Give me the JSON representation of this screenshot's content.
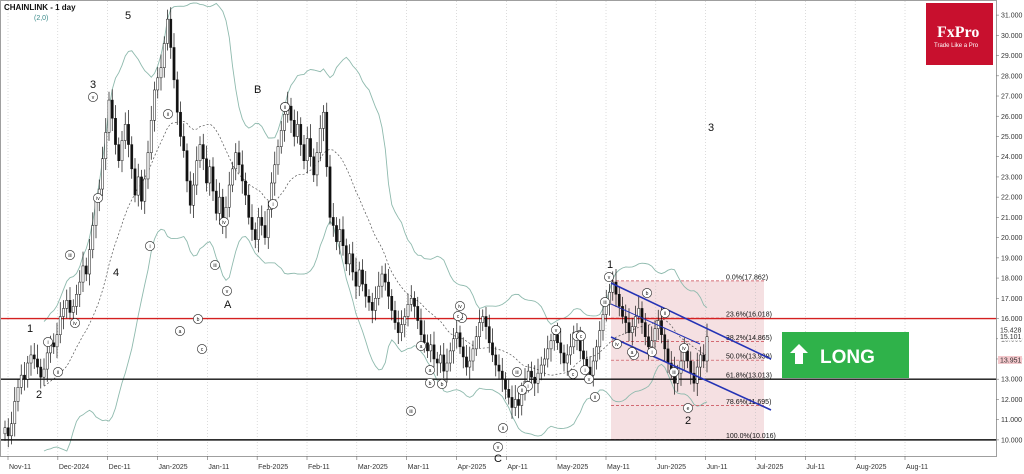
{
  "chart_data": {
    "type": "candlestick",
    "title": "CHAINLINK - 1 day",
    "subtitle": "(2,0)",
    "y_range": [
      9.5,
      31.5
    ],
    "y_ticks": [
      "31.000",
      "30.000",
      "29.000",
      "28.000",
      "27.000",
      "26.000",
      "25.000",
      "24.000",
      "23.000",
      "22.000",
      "21.000",
      "20.000",
      "19.000",
      "18.000",
      "17.000",
      "16.000",
      "15.000",
      "14.000",
      "13.000",
      "12.000",
      "11.000",
      "10.000"
    ],
    "x_ticks": [
      "Nov-11",
      "Dec-2024",
      "Dec-11",
      "Jan-2025",
      "Jan-11",
      "Feb-2025",
      "Feb-11",
      "Mar-2025",
      "Mar-11",
      "Apr-2025",
      "Apr-11",
      "May-2025",
      "May-11",
      "Jun-2025",
      "Jun-11",
      "Jul-2025",
      "Jul-11",
      "Aug-2025",
      "Aug-11"
    ],
    "last_price_label": "15.428",
    "price_labels": [
      "15.101",
      "13.951"
    ],
    "horizontal_levels": [
      {
        "value": 16.0,
        "color": "#d42020"
      },
      {
        "value": 13.0,
        "color": "#111111"
      },
      {
        "value": 10.0,
        "color": "#111111"
      }
    ],
    "fibonacci": [
      {
        "label": "0.0%(17.862)",
        "value": 17.862
      },
      {
        "label": "23.6%(16.018)",
        "value": 16.018
      },
      {
        "label": "38.2%(14.865)",
        "value": 14.865
      },
      {
        "label": "50.0%(13.939)",
        "value": 13.939
      },
      {
        "label": "61.8%(13.013)",
        "value": 13.013
      },
      {
        "label": "78.6%(11.695)",
        "value": 11.695
      },
      {
        "label": "100.0%(10.016)",
        "value": 10.016
      }
    ],
    "candles_close": [
      10.6,
      10.2,
      10.8,
      11.9,
      12.6,
      13.2,
      13.0,
      13.8,
      14.2,
      14.0,
      13.6,
      13.1,
      13.5,
      14.3,
      14.8,
      14.6,
      15.2,
      16.1,
      16.5,
      16.9,
      16.3,
      16.6,
      17.2,
      17.8,
      18.6,
      18.2,
      19.4,
      20.6,
      21.8,
      22.4,
      23.9,
      25.2,
      26.8,
      25.9,
      24.6,
      23.8,
      24.8,
      25.6,
      24.6,
      23.4,
      22.1,
      23.0,
      21.8,
      22.9,
      24.2,
      25.8,
      27.3,
      27.9,
      28.4,
      29.6,
      30.8,
      29.4,
      27.8,
      26.2,
      25.0,
      24.3,
      22.8,
      21.6,
      22.6,
      23.8,
      24.6,
      23.9,
      22.7,
      23.5,
      22.3,
      21.2,
      22.0,
      20.6,
      21.5,
      22.6,
      23.4,
      24.2,
      23.6,
      22.8,
      22.1,
      21.0,
      20.4,
      19.9,
      21.0,
      20.6,
      20.0,
      21.4,
      22.7,
      23.6,
      24.5,
      25.3,
      26.1,
      26.5,
      25.8,
      25.0,
      25.6,
      24.6,
      23.8,
      24.9,
      24.0,
      23.1,
      24.2,
      25.4,
      26.2,
      23.5,
      21.0,
      20.6,
      19.8,
      20.4,
      19.6,
      18.7,
      19.2,
      18.3,
      17.6,
      18.4,
      17.7,
      17.1,
      16.8,
      16.4,
      17.0,
      17.6,
      18.2,
      17.8,
      17.1,
      16.4,
      15.8,
      15.3,
      15.7,
      16.1,
      16.7,
      17.0,
      16.6,
      15.9,
      15.2,
      14.8,
      14.4,
      14.7,
      14.0,
      13.8,
      14.2,
      13.4,
      13.8,
      14.4,
      15.0,
      15.3,
      14.6,
      14.1,
      13.6,
      13.9,
      14.5,
      15.1,
      15.8,
      16.1,
      15.6,
      14.8,
      14.2,
      13.7,
      13.4,
      13.0,
      12.5,
      12.1,
      11.6,
      12.0,
      11.7,
      12.3,
      12.9,
      13.4,
      13.1,
      12.8,
      13.3,
      13.7,
      14.0,
      14.5,
      14.9,
      15.2,
      14.8,
      14.3,
      13.8,
      14.2,
      14.6,
      15.3,
      15.0,
      14.4,
      14.0,
      13.6,
      13.2,
      13.9,
      14.6,
      15.4,
      16.2,
      16.7,
      17.3,
      17.8,
      17.2,
      16.6,
      16.1,
      15.8,
      15.3,
      15.6,
      16.1,
      16.5,
      15.8,
      15.1,
      14.6,
      14.9,
      15.5,
      15.9,
      15.2,
      14.5,
      13.8,
      13.4,
      12.8,
      13.3,
      13.9,
      14.4,
      13.9,
      13.3,
      12.8,
      13.6,
      14.2,
      13.9,
      15.1
    ]
  },
  "annotations": [
    {
      "text": "1"
    },
    {
      "text": "2"
    },
    {
      "text": "3"
    },
    {
      "text": "4"
    },
    {
      "text": "5"
    },
    {
      "text": "B"
    },
    {
      "text": "A"
    },
    {
      "text": "C"
    },
    {
      "text": "1"
    },
    {
      "text": "2"
    },
    {
      "text": "3"
    }
  ],
  "wave_labels": [
    "(i)",
    "(iii)",
    "(iv)",
    "(v)",
    "(ii)",
    "(iv)",
    "(i)",
    "(a)",
    "(b)",
    "(c)",
    "(iv)",
    "(i)",
    "(iii)",
    "(a)",
    "(b)",
    "(c)",
    "(iv)",
    "(v)",
    "(ii)",
    "(iii)",
    "(v)",
    "(i)",
    "(ii)",
    "(iii)",
    "(iv)",
    "(v)",
    "(b)",
    "(c)",
    "(v)",
    "(e)",
    "(i)",
    "(ii)",
    "(iii)",
    "(iv)",
    "(ii)",
    "(iii)",
    "(v)",
    "(a)",
    "(b)",
    "(c)",
    "(i)",
    "(ii)",
    "(v)",
    "(c)",
    "(b)",
    "(i)",
    "(a)",
    "(iii)",
    "(ii)"
  ],
  "logo": {
    "brand": "FxPro",
    "tagline": "Trade Like a Pro",
    "color": "#c8102e"
  },
  "signal": {
    "label": "LONG",
    "color": "#2fb24a"
  }
}
